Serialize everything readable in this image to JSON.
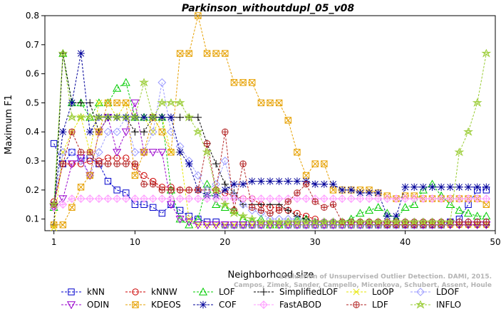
{
  "chart_data": {
    "type": "line",
    "title": "Parkinson_withoutdupl_05_v08",
    "xlabel": "Neighborhood size",
    "ylabel": "Maximum F1",
    "xlim": [
      0,
      50
    ],
    "ylim": [
      0.06,
      0.8
    ],
    "xticks": [
      1,
      10,
      20,
      30,
      40,
      50
    ],
    "yticks": [
      0.1,
      0.2,
      0.3,
      0.4,
      0.5,
      0.6,
      0.7,
      0.8
    ],
    "legend_position": "bottom",
    "watermark": [
      "Evaluation of Unsupervised Outlier Detection. DAMI, 2015.",
      "Campos, Zimek, Sander, Campello, Micenkova, Schubert, Assent, Houle"
    ],
    "series": [
      {
        "name": "kNN",
        "color": "#0000cc",
        "marker": "square",
        "lineStyle": "dashed",
        "values": [
          0.36,
          0.29,
          0.33,
          0.31,
          0.31,
          0.29,
          0.23,
          0.2,
          0.19,
          0.15,
          0.15,
          0.14,
          0.12,
          0.15,
          0.13,
          0.11,
          0.1,
          0.09,
          0.09,
          0.08,
          0.08,
          0.08,
          0.08,
          0.08,
          0.08,
          0.08,
          0.08,
          0.08,
          0.08,
          0.08,
          0.08,
          0.08,
          0.08,
          0.08,
          0.08,
          0.08,
          0.08,
          0.08,
          0.08,
          0.08,
          0.08,
          0.08,
          0.08,
          0.08,
          0.09,
          0.1,
          0.15,
          0.2,
          0.2
        ]
      },
      {
        "name": "kNNW",
        "color": "#cc0000",
        "marker": "circle",
        "lineStyle": "dashed",
        "values": [
          0.16,
          0.29,
          0.29,
          0.29,
          0.3,
          0.3,
          0.31,
          0.31,
          0.31,
          0.28,
          0.25,
          0.23,
          0.21,
          0.21,
          0.2,
          0.2,
          0.2,
          0.2,
          0.2,
          0.19,
          0.18,
          0.17,
          0.17,
          0.15,
          0.14,
          0.14,
          0.13,
          0.12,
          0.11,
          0.1,
          0.09,
          0.09,
          0.09,
          0.09,
          0.09,
          0.09,
          0.09,
          0.08,
          0.08,
          0.08,
          0.08,
          0.08,
          0.08,
          0.08,
          0.08,
          0.08,
          0.08,
          0.08,
          0.08
        ]
      },
      {
        "name": "LOF",
        "color": "#00cc00",
        "marker": "triangle-up",
        "lineStyle": "dashed",
        "values": [
          0.14,
          0.67,
          0.5,
          0.5,
          0.45,
          0.5,
          0.5,
          0.55,
          0.57,
          0.45,
          0.45,
          0.45,
          0.45,
          0.2,
          0.1,
          0.08,
          0.1,
          0.22,
          0.15,
          0.14,
          0.13,
          0.1,
          0.09,
          0.1,
          0.08,
          0.08,
          0.09,
          0.1,
          0.1,
          0.09,
          0.09,
          0.09,
          0.09,
          0.1,
          0.12,
          0.13,
          0.14,
          0.12,
          0.1,
          0.14,
          0.15,
          0.2,
          0.22,
          0.18,
          0.15,
          0.13,
          0.12,
          0.11,
          0.11
        ]
      },
      {
        "name": "SimplifiedLOF",
        "color": "#000000",
        "marker": "plus",
        "lineStyle": "dashed",
        "values": [
          0.08,
          0.67,
          0.5,
          0.5,
          0.5,
          0.4,
          0.45,
          0.45,
          0.45,
          0.4,
          0.4,
          0.45,
          0.45,
          0.45,
          0.45,
          0.45,
          0.45,
          0.36,
          0.29,
          0.22,
          0.19,
          0.15,
          0.15,
          0.15,
          0.15,
          0.15,
          0.13,
          0.11,
          0.1,
          0.09,
          0.09,
          0.09,
          0.09,
          0.09,
          0.09,
          0.08,
          0.08,
          0.08,
          0.08,
          0.08,
          0.08,
          0.08,
          0.08,
          0.08,
          0.08,
          0.08,
          0.08,
          0.08,
          0.08
        ]
      },
      {
        "name": "LoOP",
        "color": "#e6e600",
        "marker": "x",
        "lineStyle": "dashed",
        "values": [
          0.07,
          0.33,
          0.4,
          0.45,
          0.33,
          0.5,
          0.5,
          0.45,
          0.5,
          0.45,
          0.45,
          0.4,
          0.45,
          0.33,
          0.33,
          0.1,
          0.08,
          0.08,
          0.08,
          0.08,
          0.08,
          0.08,
          0.08,
          0.08,
          0.08,
          0.08,
          0.08,
          0.08,
          0.08,
          0.08,
          0.08,
          0.08,
          0.08,
          0.08,
          0.08,
          0.08,
          0.08,
          0.08,
          0.08,
          0.08,
          0.08,
          0.08,
          0.08,
          0.08,
          0.08,
          0.08,
          0.08,
          0.08,
          0.08
        ]
      },
      {
        "name": "LDOF",
        "color": "#9999ff",
        "marker": "diamond",
        "lineStyle": "dashed",
        "values": [
          0.14,
          0.33,
          0.33,
          0.3,
          0.25,
          0.33,
          0.4,
          0.4,
          0.45,
          0.33,
          0.33,
          0.4,
          0.57,
          0.4,
          0.35,
          0.3,
          0.25,
          0.2,
          0.22,
          0.3,
          0.18,
          0.15,
          0.13,
          0.12,
          0.1,
          0.1,
          0.1,
          0.1,
          0.09,
          0.09,
          0.09,
          0.09,
          0.09,
          0.09,
          0.09,
          0.09,
          0.09,
          0.09,
          0.09,
          0.09,
          0.09,
          0.09,
          0.09,
          0.09,
          0.09,
          0.09,
          0.09,
          0.09,
          0.09
        ]
      },
      {
        "name": "ODIN",
        "color": "#9900cc",
        "marker": "triangle-down",
        "lineStyle": "dashed",
        "values": [
          0.14,
          0.17,
          0.29,
          0.31,
          0.25,
          0.4,
          0.45,
          0.33,
          0.4,
          0.5,
          0.33,
          0.33,
          0.33,
          0.15,
          0.1,
          0.09,
          0.08,
          0.08,
          0.08,
          0.08,
          0.08,
          0.08,
          0.08,
          0.08,
          0.08,
          0.08,
          0.08,
          0.08,
          0.08,
          0.08,
          0.08,
          0.08,
          0.08,
          0.08,
          0.08,
          0.08,
          0.08,
          0.08,
          0.08,
          0.08,
          0.08,
          0.08,
          0.08,
          0.08,
          0.08,
          0.08,
          0.08,
          0.08,
          0.08
        ]
      },
      {
        "name": "KDEOS",
        "color": "#e6a000",
        "marker": "square-x",
        "lineStyle": "dashed",
        "values": [
          0.08,
          0.08,
          0.14,
          0.21,
          0.25,
          0.4,
          0.5,
          0.5,
          0.5,
          0.25,
          0.33,
          0.45,
          0.4,
          0.33,
          0.67,
          0.67,
          0.8,
          0.67,
          0.67,
          0.67,
          0.57,
          0.57,
          0.57,
          0.5,
          0.5,
          0.5,
          0.44,
          0.33,
          0.25,
          0.29,
          0.29,
          0.2,
          0.2,
          0.2,
          0.2,
          0.2,
          0.19,
          0.18,
          0.17,
          0.18,
          0.18,
          0.17,
          0.17,
          0.17,
          0.17,
          0.17,
          0.17,
          0.17,
          0.15
        ]
      },
      {
        "name": "COF",
        "color": "#000099",
        "marker": "asterisk",
        "lineStyle": "dashed",
        "values": [
          0.15,
          0.4,
          0.5,
          0.67,
          0.4,
          0.45,
          0.45,
          0.45,
          0.45,
          0.45,
          0.45,
          0.45,
          0.45,
          0.45,
          0.33,
          0.29,
          0.2,
          0.18,
          0.18,
          0.2,
          0.22,
          0.22,
          0.23,
          0.23,
          0.23,
          0.23,
          0.23,
          0.23,
          0.23,
          0.22,
          0.22,
          0.22,
          0.2,
          0.2,
          0.19,
          0.19,
          0.19,
          0.11,
          0.11,
          0.21,
          0.21,
          0.21,
          0.21,
          0.21,
          0.21,
          0.21,
          0.21,
          0.21,
          0.21
        ]
      },
      {
        "name": "FastABOD",
        "color": "#ff99ff",
        "marker": "diamond-plus",
        "lineStyle": "dashed",
        "values": [
          0.14,
          0.15,
          0.17,
          0.17,
          0.17,
          0.17,
          0.17,
          0.17,
          0.17,
          0.17,
          0.17,
          0.17,
          0.17,
          0.17,
          0.17,
          0.17,
          0.17,
          0.17,
          0.17,
          0.17,
          0.17,
          0.17,
          0.17,
          0.17,
          0.17,
          0.17,
          0.17,
          0.17,
          0.17,
          0.17,
          0.17,
          0.17,
          0.17,
          0.17,
          0.17,
          0.17,
          0.17,
          0.17,
          0.17,
          0.17,
          0.17,
          0.17,
          0.17,
          0.17,
          0.17,
          0.17,
          0.17,
          0.17,
          0.17
        ]
      },
      {
        "name": "LDF",
        "color": "#b22222",
        "marker": "circle-plus",
        "lineStyle": "dashed",
        "values": [
          0.15,
          0.29,
          0.4,
          0.33,
          0.33,
          0.29,
          0.29,
          0.29,
          0.29,
          0.29,
          0.22,
          0.22,
          0.2,
          0.2,
          0.2,
          0.2,
          0.2,
          0.36,
          0.2,
          0.4,
          0.13,
          0.29,
          0.14,
          0.13,
          0.12,
          0.13,
          0.16,
          0.19,
          0.22,
          0.16,
          0.14,
          0.15,
          0.09,
          0.09,
          0.09,
          0.09,
          0.09,
          0.09,
          0.09,
          0.09,
          0.09,
          0.09,
          0.09,
          0.09,
          0.09,
          0.09,
          0.09,
          0.09,
          0.09
        ]
      },
      {
        "name": "INFLO",
        "color": "#99cc33",
        "marker": "star",
        "lineStyle": "dashed",
        "values": [
          0.15,
          0.67,
          0.45,
          0.45,
          0.45,
          0.45,
          0.45,
          0.45,
          0.45,
          0.45,
          0.57,
          0.45,
          0.5,
          0.5,
          0.5,
          0.45,
          0.4,
          0.33,
          0.2,
          0.15,
          0.12,
          0.11,
          0.1,
          0.09,
          0.09,
          0.09,
          0.09,
          0.09,
          0.09,
          0.09,
          0.09,
          0.09,
          0.09,
          0.09,
          0.09,
          0.09,
          0.09,
          0.09,
          0.09,
          0.09,
          0.09,
          0.09,
          0.09,
          0.09,
          0.09,
          0.33,
          0.4,
          0.5,
          0.67
        ]
      }
    ],
    "legend_rows": [
      [
        "kNN",
        "kNNW",
        "LOF",
        "SimplifiedLOF",
        "LoOP",
        "LDOF"
      ],
      [
        "ODIN",
        "KDEOS",
        "COF",
        "FastABOD",
        "LDF",
        "INFLO"
      ]
    ]
  }
}
